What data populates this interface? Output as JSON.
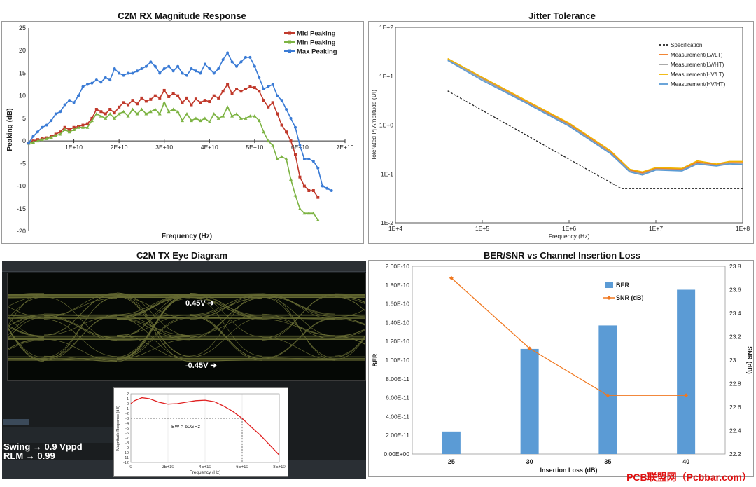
{
  "panels": {
    "rx_title": "C2M RX Magnitude Response",
    "jitter_title": "Jitter Tolerance",
    "eye_title": "C2M TX Eye Diagram",
    "ber_title": "BER/SNR vs Channel Insertion Loss"
  },
  "eye": {
    "upper_level": "0.45V",
    "lower_level": "-0.45V",
    "swing": "Swing → 0.9 Vppd",
    "rlm": "RLM → 0.99",
    "inset_annotation": "BW > 60GHz",
    "eye_color": "#d9e06a"
  },
  "watermark": "PCB联盟网（Pcbbar.com）",
  "chart_data": [
    {
      "type": "line",
      "title": "C2M RX Magnitude Response",
      "xlabel": "Frequency (Hz)",
      "ylabel": "Peaking (dB)",
      "xlim": [
        0,
        70000000000
      ],
      "ylim": [
        -20,
        25
      ],
      "yticks": [
        "25",
        "20",
        "15",
        "10",
        "5",
        "0",
        "-5",
        "-10",
        "-15",
        "-20"
      ],
      "xticks": [
        "1E+10",
        "2E+10",
        "3E+10",
        "4E+10",
        "5E+10",
        "6E+10",
        "7E+10"
      ],
      "legend": "top-right",
      "series": [
        {
          "name": "Mid Peaking",
          "color": "#c0392b",
          "x": [
            0,
            1,
            2,
            3,
            4,
            5,
            6,
            7,
            8,
            9,
            10,
            11,
            12,
            13,
            14,
            15,
            16,
            17,
            18,
            19,
            20,
            21,
            22,
            23,
            24,
            25,
            26,
            27,
            28,
            29,
            30,
            31,
            32,
            33,
            34,
            35,
            36,
            37,
            38,
            39,
            40,
            41,
            42,
            43,
            44,
            45,
            46,
            47,
            48,
            49,
            50,
            51,
            52,
            53,
            54,
            55,
            56,
            57,
            58,
            59,
            60,
            61,
            62,
            63,
            64
          ],
          "y": [
            -0.5,
            0,
            0.3,
            0.5,
            0.7,
            1,
            1.5,
            2,
            3,
            2.5,
            3,
            3.2,
            3.5,
            3.8,
            5,
            7,
            6.5,
            6,
            7,
            6.2,
            7.5,
            8.5,
            8,
            9,
            8.2,
            9.5,
            8.8,
            9.2,
            10,
            9.5,
            11.2,
            9.8,
            10.5,
            10,
            8.5,
            9.5,
            8,
            9.3,
            8.5,
            9,
            8.7,
            10,
            9.5,
            11,
            12.5,
            10.5,
            11.5,
            11,
            11.5,
            12,
            11.8,
            11,
            9,
            7.5,
            8.5,
            6,
            3.5,
            2,
            0,
            -3,
            -8,
            -10,
            -11,
            -11,
            -12.5
          ]
        },
        {
          "name": "Min Peaking",
          "color": "#7cb342",
          "x": [
            0,
            1,
            2,
            3,
            4,
            5,
            6,
            7,
            8,
            9,
            10,
            11,
            12,
            13,
            14,
            15,
            16,
            17,
            18,
            19,
            20,
            21,
            22,
            23,
            24,
            25,
            26,
            27,
            28,
            29,
            30,
            31,
            32,
            33,
            34,
            35,
            36,
            37,
            38,
            39,
            40,
            41,
            42,
            43,
            44,
            45,
            46,
            47,
            48,
            49,
            50,
            51,
            52,
            53,
            54,
            55,
            56,
            57,
            58,
            59,
            60,
            61,
            62,
            63,
            64
          ],
          "y": [
            -0.5,
            -0.3,
            0,
            0.3,
            0.5,
            0.8,
            1.2,
            1.5,
            2.5,
            2,
            2.5,
            3,
            3,
            3,
            4.5,
            6,
            5.5,
            5,
            6,
            5,
            6,
            6.5,
            5.5,
            7,
            6,
            7,
            6,
            6.5,
            7,
            6,
            8.5,
            6.5,
            7,
            6.5,
            4.5,
            6,
            4.5,
            5,
            4.5,
            5,
            4.2,
            6,
            5,
            5.5,
            7.5,
            5.5,
            6,
            5,
            5,
            5.5,
            5.5,
            4.5,
            2,
            0,
            -1,
            -4,
            -3.5,
            -4,
            -8.5,
            -12,
            -15,
            -16,
            -16,
            -16,
            -17.5
          ]
        },
        {
          "name": "Max Peaking",
          "color": "#3a7bd5",
          "x": [
            0,
            1,
            2,
            3,
            4,
            5,
            6,
            7,
            8,
            9,
            10,
            11,
            12,
            13,
            14,
            15,
            16,
            17,
            18,
            19,
            20,
            21,
            22,
            23,
            24,
            25,
            26,
            27,
            28,
            29,
            30,
            31,
            32,
            33,
            34,
            35,
            36,
            37,
            38,
            39,
            40,
            41,
            42,
            43,
            44,
            45,
            46,
            47,
            48,
            49,
            50,
            51,
            52,
            53,
            54,
            55,
            56,
            57,
            58,
            59,
            60,
            61,
            62,
            63,
            64,
            65,
            66,
            67
          ],
          "y": [
            -0.5,
            1,
            2,
            3,
            3.5,
            4.5,
            6,
            6.5,
            8,
            9,
            8.5,
            10,
            12,
            12.5,
            12.8,
            13.5,
            13,
            14,
            13.5,
            16,
            15,
            14.5,
            15,
            15,
            15.5,
            16,
            16.5,
            17.5,
            16.5,
            15,
            16,
            16.5,
            15.5,
            16.5,
            15,
            14.5,
            16,
            15.5,
            15,
            17,
            16,
            15,
            16,
            18,
            19.5,
            17.5,
            16.5,
            17.5,
            18.5,
            18.5,
            16.5,
            14,
            11.5,
            12,
            12.5,
            10,
            9,
            7,
            5,
            3,
            -1,
            -4,
            -4,
            -4.5,
            -6,
            -10,
            -10.5,
            -11
          ]
        }
      ]
    },
    {
      "type": "line",
      "title": "Jitter Tolerance",
      "xlabel": "Frequency (Hz)",
      "ylabel": "Tolerated Pj Amplitude (UI)",
      "xscale": "log",
      "yscale": "log",
      "xlim": [
        10000,
        100000000
      ],
      "ylim": [
        0.01,
        100
      ],
      "xticks": [
        "1E+4",
        "1E+5",
        "1E+6",
        "1E+7",
        "1E+8"
      ],
      "yticks": [
        "1E+2",
        "1E+1",
        "1E+0",
        "1E-1",
        "1E-2"
      ],
      "legend": "top-right",
      "series": [
        {
          "name": "Specification",
          "color": "#222222",
          "dash": true,
          "x": [
            40000,
            100000,
            300000,
            1000000,
            3000000,
            4000000,
            10000000,
            100000000
          ],
          "y": [
            5,
            2,
            0.67,
            0.2,
            0.067,
            0.05,
            0.05,
            0.05
          ]
        },
        {
          "name": "Measurement(LV/LT)",
          "color": "#f07820",
          "x": [
            40000,
            100000,
            300000,
            1000000,
            3000000,
            5000000,
            7000000,
            10000000,
            20000000,
            30000000,
            50000000,
            70000000,
            100000000
          ],
          "y": [
            22,
            9,
            3.2,
            1.05,
            0.28,
            0.12,
            0.105,
            0.13,
            0.125,
            0.175,
            0.155,
            0.17,
            0.17
          ]
        },
        {
          "name": "Measurement(LV/HT)",
          "color": "#a0a0a0",
          "x": [
            40000,
            100000,
            300000,
            1000000,
            3000000,
            5000000,
            7000000,
            10000000,
            20000000,
            30000000,
            50000000,
            70000000,
            100000000
          ],
          "y": [
            22,
            8.8,
            3.1,
            1.0,
            0.27,
            0.115,
            0.1,
            0.125,
            0.12,
            0.165,
            0.15,
            0.165,
            0.165
          ]
        },
        {
          "name": "Measurement(HV/LT)",
          "color": "#f0b400",
          "x": [
            40000,
            100000,
            300000,
            1000000,
            3000000,
            5000000,
            7000000,
            10000000,
            20000000,
            30000000,
            50000000,
            70000000,
            100000000
          ],
          "y": [
            23,
            9.5,
            3.4,
            1.1,
            0.3,
            0.125,
            0.11,
            0.135,
            0.13,
            0.185,
            0.16,
            0.18,
            0.18
          ]
        },
        {
          "name": "Measurement(HV/HT)",
          "color": "#5b9bd5",
          "x": [
            40000,
            100000,
            300000,
            1000000,
            3000000,
            5000000,
            7000000,
            10000000,
            20000000,
            30000000,
            50000000,
            70000000,
            100000000
          ],
          "y": [
            21,
            8.2,
            3.0,
            0.95,
            0.26,
            0.11,
            0.095,
            0.12,
            0.115,
            0.16,
            0.145,
            0.16,
            0.155
          ]
        }
      ]
    },
    {
      "type": "bar",
      "title": "BER/SNR vs Channel Insertion Loss",
      "xlabel": "Insertion Loss (dB)",
      "ylabel": "BER",
      "y2label": "SNR (dB)",
      "categories": [
        "25",
        "30",
        "35",
        "40"
      ],
      "ylim": [
        0,
        2e-10
      ],
      "y2lim": [
        22.2,
        23.8
      ],
      "yticks": [
        "0.00E+00",
        "2.00E-11",
        "4.00E-11",
        "6.00E-11",
        "8.00E-11",
        "1.00E-10",
        "1.20E-10",
        "1.40E-10",
        "1.60E-10",
        "1.80E-10",
        "2.00E-10"
      ],
      "y2ticks": [
        "22.2",
        "22.4",
        "22.6",
        "22.8",
        "23",
        "23.2",
        "23.4",
        "23.6",
        "23.8"
      ],
      "legend": "top-right",
      "series": [
        {
          "name": "BER",
          "kind": "bar",
          "color": "#5b9bd5",
          "values": [
            2.4e-11,
            1.12e-10,
            1.37e-10,
            1.75e-10
          ]
        },
        {
          "name": "SNR (dB)",
          "kind": "line",
          "axis": "right",
          "color": "#f07820",
          "values": [
            23.7,
            23.1,
            22.7,
            22.7
          ]
        }
      ]
    },
    {
      "type": "line",
      "xlabel": "Frequency (Hz)",
      "ylabel": "Magnitude Response (dB)",
      "xlim": [
        0,
        80000000000
      ],
      "ylim": [
        -12,
        2
      ],
      "xticks": [
        "0",
        "2E+10",
        "4E+10",
        "6E+10",
        "8E+10"
      ],
      "yticks": [
        "2",
        "1",
        "0",
        "-1",
        "-2",
        "-3",
        "-4",
        "-5",
        "-6",
        "-7",
        "-8",
        "-9",
        "-10",
        "-11",
        "-12"
      ],
      "annotation": "BW > 60GHz",
      "series": [
        {
          "color": "#e02020",
          "x": [
            0,
            2000000000,
            6000000000,
            10000000000,
            15000000000,
            20000000000,
            25000000000,
            30000000000,
            35000000000,
            40000000000,
            45000000000,
            50000000000,
            55000000000,
            60000000000,
            65000000000,
            70000000000,
            75000000000,
            80000000000
          ],
          "y": [
            0,
            0.6,
            1.2,
            1.0,
            0.3,
            -0.1,
            0,
            0.3,
            0.6,
            0.7,
            0.4,
            -0.5,
            -1.6,
            -3,
            -4.8,
            -6.5,
            -8.5,
            -10.5
          ]
        }
      ]
    }
  ]
}
